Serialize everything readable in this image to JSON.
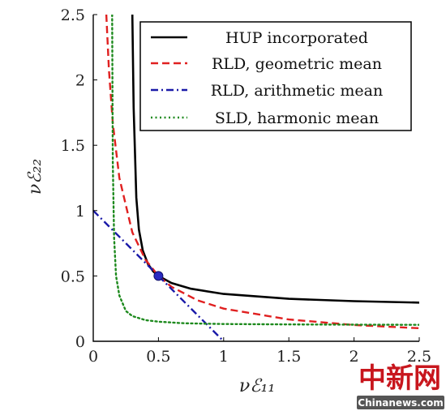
{
  "chart_data": {
    "type": "line",
    "title": "",
    "xlabel": "νℰ₁₁",
    "ylabel": "νℰ₂₂",
    "xlim": [
      0,
      2.5
    ],
    "ylim": [
      0,
      2.5
    ],
    "xticks": [
      "0",
      "0.5",
      "1",
      "1.5",
      "2",
      "2.5"
    ],
    "yticks": [
      "0",
      "0.5",
      "1",
      "1.5",
      "2",
      "2.5"
    ],
    "legend_position": "top-right",
    "grid": false,
    "series": [
      {
        "name": "HUP incorporated",
        "color": "#000000",
        "style": "solid",
        "x": [
          0.3,
          0.31,
          0.33,
          0.35,
          0.38,
          0.42,
          0.46,
          0.5,
          0.6,
          0.75,
          1.0,
          1.5,
          2.0,
          2.5
        ],
        "y": [
          2.5,
          1.79,
          1.1,
          0.854,
          0.694,
          0.591,
          0.534,
          0.5,
          0.446,
          0.402,
          0.362,
          0.325,
          0.307,
          0.296
        ]
      },
      {
        "name": "RLD, geometric mean",
        "color": "#e02020",
        "style": "dashed",
        "x": [
          0.1,
          0.12,
          0.15,
          0.2,
          0.3,
          0.4,
          0.5,
          0.6,
          0.8,
          1.0,
          1.5,
          2.0,
          2.5
        ],
        "y": [
          2.5,
          2.08,
          1.67,
          1.25,
          0.833,
          0.625,
          0.5,
          0.417,
          0.313,
          0.25,
          0.167,
          0.125,
          0.1
        ]
      },
      {
        "name": "RLD, arithmetic mean",
        "color": "#1a1aa8",
        "style": "dashdot",
        "x": [
          0,
          1.0
        ],
        "y": [
          1.0,
          0
        ]
      },
      {
        "name": "SLD, harmonic mean",
        "color": "#1e8a1e",
        "style": "dotted",
        "x": [
          0.145,
          0.15,
          0.16,
          0.175,
          0.2,
          0.25,
          0.3,
          0.4,
          0.5,
          0.7,
          1.0,
          1.5,
          2.0,
          2.5
        ],
        "y": [
          2.5,
          1.375,
          0.792,
          0.5,
          0.35,
          0.232,
          0.193,
          0.162,
          0.15,
          0.138,
          0.132,
          0.129,
          0.127,
          0.126
        ]
      }
    ],
    "marker": {
      "x": 0.5,
      "y": 0.5,
      "color": "#2a2ac0"
    }
  },
  "watermark": {
    "chinese": "中新网",
    "site": "Chinanews.com"
  }
}
